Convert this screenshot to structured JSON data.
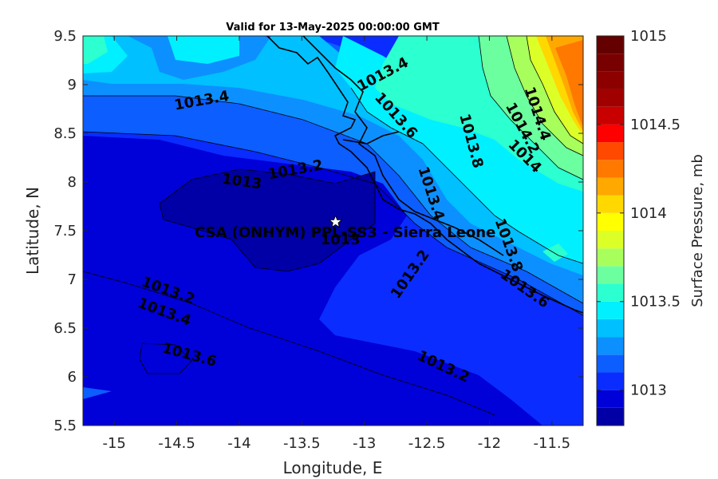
{
  "chart_data": {
    "type": "heatmap",
    "title": "Valid for 13-May-2025 00:00:00 GMT",
    "xlabel": "Longitude, E",
    "ylabel": "Latitude, N",
    "xlim": [
      -15.25,
      -11.25
    ],
    "ylim": [
      5.5,
      9.5
    ],
    "xticks": [
      -15,
      -14.5,
      -14,
      -13.5,
      -13,
      -12.5,
      -12,
      -11.5
    ],
    "xtick_labels": [
      "-15",
      "-14.5",
      "-14",
      "-13.5",
      "-13",
      "-12.5",
      "-12",
      "-11.5"
    ],
    "yticks": [
      5.5,
      6,
      6.5,
      7,
      7.5,
      8,
      8.5,
      9,
      9.5
    ],
    "ytick_labels": [
      "5.5",
      "6",
      "6.5",
      "7",
      "7.5",
      "8",
      "8.5",
      "9",
      "9.5"
    ],
    "colorbar": {
      "label": "Surface Pressure, mb",
      "range": [
        1012.8,
        1015.0
      ],
      "levels": [
        1012.8,
        1012.9,
        1013.0,
        1013.1,
        1013.2,
        1013.3,
        1013.4,
        1013.5,
        1013.6,
        1013.7,
        1013.8,
        1013.9,
        1014.0,
        1014.1,
        1014.2,
        1014.3,
        1014.4,
        1014.5,
        1014.6,
        1014.7,
        1014.8,
        1014.9,
        1015.0
      ],
      "colors": [
        "#0000a6",
        "#0000d8",
        "#0a2cff",
        "#0c5eff",
        "#0d90ff",
        "#00c0ff",
        "#00f0ff",
        "#2cffd0",
        "#6cffa0",
        "#a8ff5c",
        "#dcff28",
        "#ffff00",
        "#ffd800",
        "#ffa800",
        "#ff7800",
        "#ff4800",
        "#ff0000",
        "#c80000",
        "#a00000",
        "#8c0000",
        "#780000",
        "#640000"
      ],
      "ticks": [
        1013,
        1013.5,
        1014,
        1014.5,
        1015
      ],
      "tick_labels": [
        "1013",
        "1013.5",
        "1014",
        "1014.5",
        "1015"
      ]
    },
    "contour_labels": [
      {
        "text": "1013.4",
        "lon": -14.3,
        "lat": 8.83,
        "angle": -10
      },
      {
        "text": "1013.4",
        "lon": -12.85,
        "lat": 9.1,
        "angle": -28
      },
      {
        "text": "1013.6",
        "lon": -12.75,
        "lat": 8.68,
        "angle": 48
      },
      {
        "text": "1013.8",
        "lon": -12.15,
        "lat": 8.42,
        "angle": 75
      },
      {
        "text": "1014.4",
        "lon": -11.62,
        "lat": 8.7,
        "angle": 72
      },
      {
        "text": "1014.2",
        "lon": -11.74,
        "lat": 8.55,
        "angle": 62
      },
      {
        "text": "1014",
        "lon": -11.72,
        "lat": 8.26,
        "angle": 45
      },
      {
        "text": "1013.2",
        "lon": -13.55,
        "lat": 8.12,
        "angle": -10
      },
      {
        "text": "1013",
        "lon": -13.98,
        "lat": 8.0,
        "angle": 8
      },
      {
        "text": "1013.4",
        "lon": -12.47,
        "lat": 7.88,
        "angle": 72
      },
      {
        "text": "1013.8",
        "lon": -11.85,
        "lat": 7.35,
        "angle": 70
      },
      {
        "text": "1013.2",
        "lon": -12.63,
        "lat": 7.05,
        "angle": -55
      },
      {
        "text": "1013.6",
        "lon": -11.72,
        "lat": 6.9,
        "angle": 35
      },
      {
        "text": "1013.2",
        "lon": -14.57,
        "lat": 6.88,
        "angle": 20
      },
      {
        "text": "1013.4",
        "lon": -14.6,
        "lat": 6.66,
        "angle": 20
      },
      {
        "text": "1013.6",
        "lon": -14.4,
        "lat": 6.22,
        "angle": 15
      },
      {
        "text": "1013.2",
        "lon": -12.37,
        "lat": 6.1,
        "angle": 25
      }
    ],
    "station": {
      "name": "CSA (ONHYM) PPL-SS3 - Sierra Leone",
      "lon": -13.23,
      "lat": 7.59,
      "value_label": "1013"
    },
    "grid": false
  }
}
